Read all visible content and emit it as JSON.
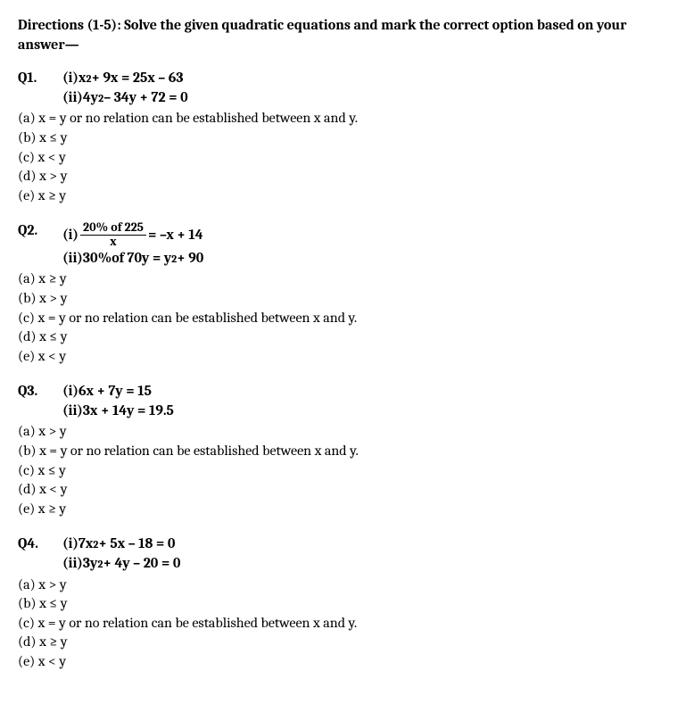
{
  "directions": "Directions (1-5): Solve the given quadratic equations and mark the correct option based on your answer—",
  "questions": [
    {
      "number": "Q1.",
      "eq1_label": "(i) ",
      "eq1_parts": [
        "x",
        "2",
        " + 9x = 25x – 63"
      ],
      "eq2_label": "(ii) ",
      "eq2_parts": [
        "4y",
        "2",
        " – 34y + 72 = 0"
      ],
      "options": [
        "(a) x = y or no relation can be established between x and y.",
        "(b) x ≤ y",
        "(c) x < y",
        "(d) x > y",
        "(e) x ≥ y"
      ]
    },
    {
      "number": "Q2.",
      "eq1_label": "(i) ",
      "frac_num": "20% of 225",
      "frac_den": "x",
      "eq1_after_frac": " = –x + 14",
      "eq2_label": "(ii) ",
      "eq2_parts": [
        "30%of 70y = y",
        "2",
        " + 90"
      ],
      "options": [
        "(a) x ≥ y",
        "(b) x > y",
        "(c) x = y or no relation can be established between x and y.",
        "(d) x ≤ y",
        "(e) x < y"
      ]
    },
    {
      "number": "Q3.",
      "eq1_label": "(i) ",
      "eq1_plain": "6x + 7y = 15",
      "eq2_label": "(ii) ",
      "eq2_plain": "3x + 14y = 19.5",
      "options": [
        "(a) x > y",
        "(b) x = y or no relation can be established between x and y.",
        "(c) x ≤ y",
        "(d) x < y",
        "(e) x ≥ y"
      ]
    },
    {
      "number": "Q4.",
      "eq1_label": "(i) ",
      "eq1_parts": [
        "7x",
        "2",
        " + 5x – 18 = 0"
      ],
      "eq2_label": "(ii) ",
      "eq2_parts": [
        "3y",
        "2",
        " + 4y – 20 = 0"
      ],
      "options": [
        "(a) x > y",
        "(b) x ≤ y",
        "(c) x = y or no relation can be established between x and y.",
        "(d) x ≥ y",
        "(e) x < y"
      ]
    }
  ]
}
